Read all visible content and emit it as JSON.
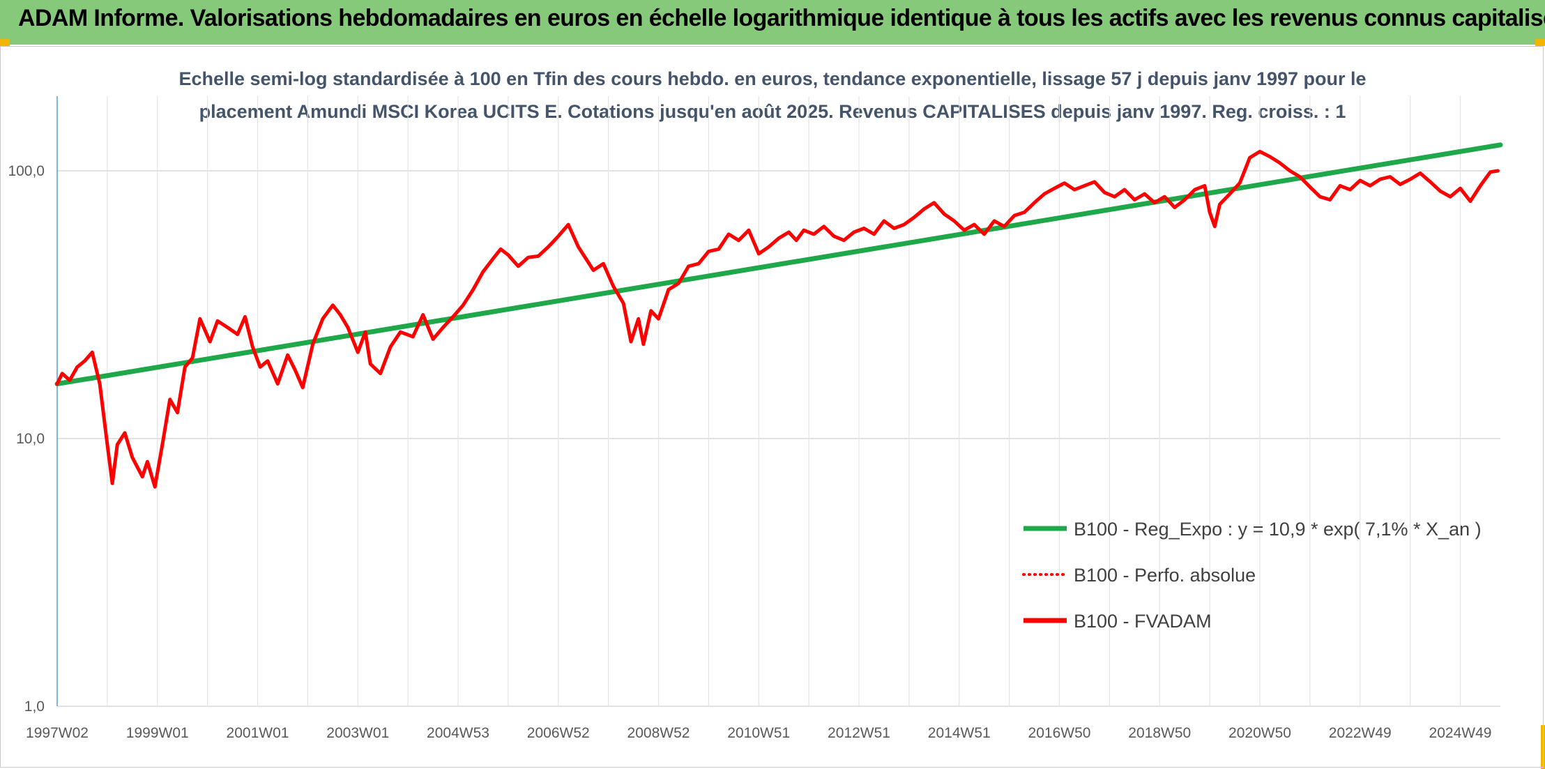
{
  "header": {
    "title": "ADAM Informe. Valorisations hebdomadaires en euros en échelle logarithmique identique à tous les actifs avec les revenus connus capitalisés"
  },
  "colors": {
    "header_band": "#86c97a",
    "trend_line": "#1fa84a",
    "series_line": "#ff0000",
    "gridline": "#d9d9d9",
    "subtitle": "#44546a"
  },
  "chart_data": {
    "type": "line",
    "title_lines": [
      "Echelle semi-log standardisée à 100 en Tfin des cours hebdo. en euros, tendance exponentielle, lissage 57 j depuis janv 1997 pour le",
      "placement Amundi MSCI Korea UCITS E. Cotations jusqu'en août 2025. Revenus CAPITALISES depuis janv 1997. Reg. croiss. : 1"
    ],
    "xlabel": "",
    "ylabel": "",
    "y_scale": "log",
    "ylim": [
      1,
      190
    ],
    "y_ticks": [
      {
        "value": 1,
        "label": "1,0"
      },
      {
        "value": 10,
        "label": "10,0"
      },
      {
        "value": 100,
        "label": "100,0"
      }
    ],
    "xlim": [
      1997.0,
      2025.8
    ],
    "x_ticks": [
      {
        "value": 1997.0,
        "label": "1997W02"
      },
      {
        "value": 1999.0,
        "label": "1999W01"
      },
      {
        "value": 2001.0,
        "label": "2001W01"
      },
      {
        "value": 2003.0,
        "label": "2003W01"
      },
      {
        "value": 2005.0,
        "label": "2004W53"
      },
      {
        "value": 2007.0,
        "label": "2006W52"
      },
      {
        "value": 2009.0,
        "label": "2008W52"
      },
      {
        "value": 2011.0,
        "label": "2010W51"
      },
      {
        "value": 2013.0,
        "label": "2012W51"
      },
      {
        "value": 2015.0,
        "label": "2014W51"
      },
      {
        "value": 2017.0,
        "label": "2016W50"
      },
      {
        "value": 2019.0,
        "label": "2018W50"
      },
      {
        "value": 2021.0,
        "label": "2020W50"
      },
      {
        "value": 2023.0,
        "label": "2022W49"
      },
      {
        "value": 2025.0,
        "label": "2024W49"
      }
    ],
    "grid": true,
    "legend_position": "lower-right",
    "series": [
      {
        "name": "B100 - Reg_Expo : y = 10,9 * exp( 7,1% *  X_an )",
        "kind": "trend",
        "color": "#1fa84a",
        "x": [
          1997.0,
          2025.8
        ],
        "y": [
          16.0,
          125.0
        ]
      },
      {
        "name": "B100 - Perfo. absolue",
        "kind": "dotted",
        "color": "#ff0000",
        "x": [],
        "y": []
      },
      {
        "name": "B100 - FVADAM",
        "kind": "solid",
        "color": "#ff0000",
        "x": [
          1997.0,
          1997.1,
          1997.25,
          1997.4,
          1997.55,
          1997.7,
          1997.85,
          1998.0,
          1998.1,
          1998.2,
          1998.35,
          1998.5,
          1998.7,
          1998.8,
          1998.95,
          1999.1,
          1999.25,
          1999.4,
          1999.55,
          1999.7,
          1999.85,
          2000.05,
          2000.2,
          2000.4,
          2000.6,
          2000.75,
          2000.9,
          2001.05,
          2001.2,
          2001.4,
          2001.6,
          2001.75,
          2001.9,
          2002.1,
          2002.3,
          2002.5,
          2002.65,
          2002.8,
          2003.0,
          2003.15,
          2003.25,
          2003.45,
          2003.65,
          2003.85,
          2004.1,
          2004.3,
          2004.5,
          2004.7,
          2004.9,
          2005.1,
          2005.3,
          2005.5,
          2005.7,
          2005.85,
          2006.0,
          2006.2,
          2006.4,
          2006.6,
          2006.8,
          2007.0,
          2007.2,
          2007.4,
          2007.55,
          2007.7,
          2007.9,
          2008.1,
          2008.3,
          2008.45,
          2008.6,
          2008.7,
          2008.85,
          2009.0,
          2009.2,
          2009.4,
          2009.6,
          2009.8,
          2010.0,
          2010.2,
          2010.4,
          2010.6,
          2010.8,
          2011.0,
          2011.2,
          2011.4,
          2011.6,
          2011.75,
          2011.9,
          2012.1,
          2012.3,
          2012.5,
          2012.7,
          2012.9,
          2013.1,
          2013.3,
          2013.5,
          2013.7,
          2013.9,
          2014.1,
          2014.3,
          2014.5,
          2014.7,
          2014.9,
          2015.1,
          2015.3,
          2015.5,
          2015.7,
          2015.9,
          2016.1,
          2016.3,
          2016.5,
          2016.7,
          2016.9,
          2017.1,
          2017.3,
          2017.5,
          2017.7,
          2017.9,
          2018.1,
          2018.3,
          2018.5,
          2018.7,
          2018.9,
          2019.1,
          2019.3,
          2019.5,
          2019.7,
          2019.9,
          2020.0,
          2020.1,
          2020.2,
          2020.4,
          2020.6,
          2020.8,
          2021.0,
          2021.2,
          2021.4,
          2021.6,
          2021.8,
          2022.0,
          2022.2,
          2022.4,
          2022.6,
          2022.8,
          2023.0,
          2023.2,
          2023.4,
          2023.6,
          2023.8,
          2024.0,
          2024.2,
          2024.4,
          2024.6,
          2024.8,
          2025.0,
          2025.2,
          2025.4,
          2025.6,
          2025.75
        ],
        "y": [
          16.0,
          17.5,
          16.5,
          18.5,
          19.5,
          21.0,
          16.0,
          9.5,
          6.8,
          9.5,
          10.5,
          8.5,
          7.2,
          8.2,
          6.6,
          9.5,
          14.0,
          12.5,
          18.5,
          20.0,
          28.0,
          23.0,
          27.5,
          26.0,
          24.5,
          28.5,
          22.0,
          18.5,
          19.5,
          16.0,
          20.5,
          18.0,
          15.5,
          22.5,
          28.0,
          31.5,
          29.0,
          26.0,
          21.0,
          25.0,
          19.0,
          17.5,
          22.0,
          25.0,
          24.0,
          29.0,
          23.5,
          26.0,
          28.5,
          31.5,
          36.0,
          42.0,
          47.0,
          51.0,
          48.5,
          44.0,
          47.5,
          48.0,
          52.0,
          57.0,
          63.0,
          52.0,
          47.0,
          42.5,
          45.0,
          37.0,
          32.0,
          23.0,
          28.0,
          22.5,
          30.0,
          28.0,
          36.0,
          38.0,
          44.0,
          45.0,
          50.0,
          51.0,
          58.0,
          55.0,
          60.0,
          49.0,
          52.0,
          56.0,
          59.0,
          55.0,
          60.0,
          58.0,
          62.0,
          57.0,
          55.0,
          59.0,
          61.0,
          58.0,
          65.0,
          61.0,
          63.0,
          67.0,
          72.0,
          76.0,
          69.0,
          65.0,
          60.0,
          63.0,
          58.0,
          65.0,
          62.0,
          68.0,
          70.0,
          76.0,
          82.0,
          86.0,
          90.0,
          85.0,
          88.0,
          91.0,
          83.0,
          80.0,
          85.0,
          78.0,
          82.0,
          76.0,
          80.0,
          73.0,
          78.0,
          85.0,
          88.0,
          70.0,
          62.0,
          75.0,
          82.0,
          90.0,
          112.0,
          118.0,
          113.0,
          107.0,
          100.0,
          95.0,
          87.0,
          80.0,
          78.0,
          88.0,
          85.0,
          92.0,
          88.0,
          93.0,
          95.0,
          89.0,
          93.0,
          98.0,
          91.0,
          84.0,
          80.0,
          86.0,
          77.0,
          88.0,
          99.0,
          100.0
        ]
      }
    ]
  }
}
